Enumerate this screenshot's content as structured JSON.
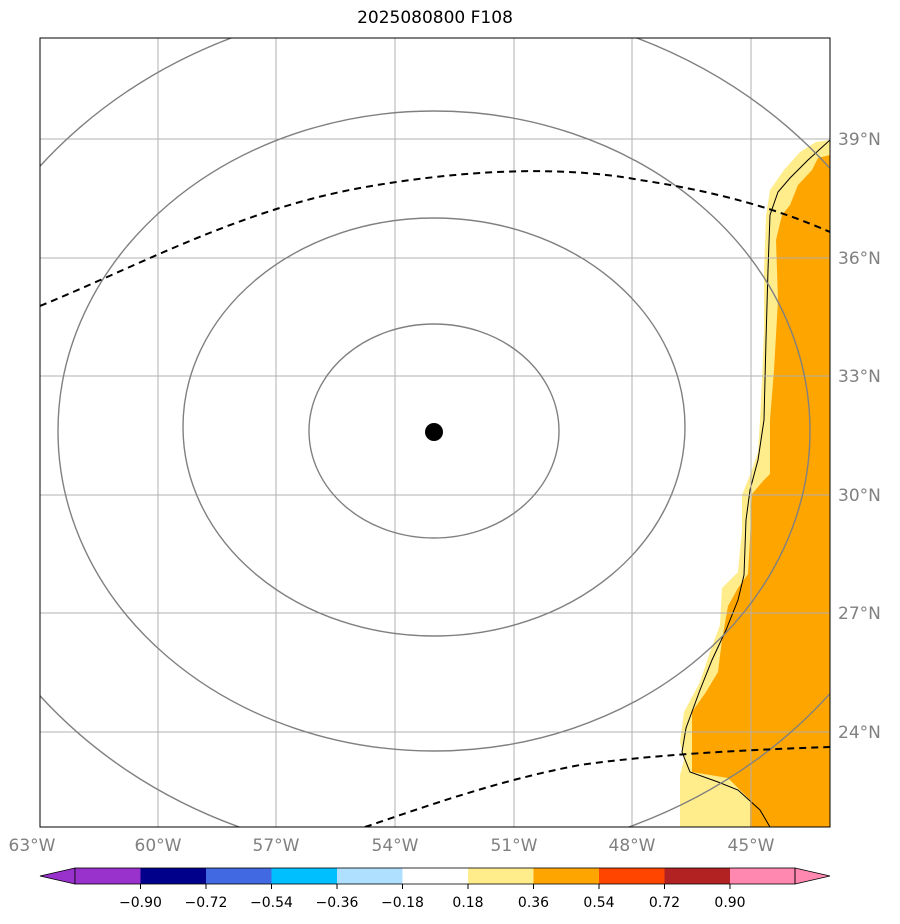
{
  "title": "2025080800 F108",
  "map": {
    "projection": "orthographic",
    "center_marker": {
      "lon": -52.7,
      "lat": 31.5,
      "color": "#000000"
    },
    "lon_ticks": [
      "63°W",
      "60°W",
      "57°W",
      "54°W",
      "51°W",
      "48°W",
      "45°W"
    ],
    "lat_ticks": [
      "39°N",
      "36°N",
      "33°N",
      "30°N",
      "27°N",
      "24°N"
    ],
    "range_rings": 4,
    "ring_color": "#808080",
    "gridline_color": "#b0b0b0",
    "contour_style": "dashed black",
    "shaded_field_colors": {
      "0.18-0.36": "#ffec8b",
      "0.36-0.54": "#ffa500"
    }
  },
  "colorbar": {
    "ticks": [
      "−0.90",
      "−0.72",
      "−0.54",
      "−0.36",
      "−0.18",
      "0.18",
      "0.36",
      "0.54",
      "0.72",
      "0.90"
    ],
    "colors": [
      "#9932cc",
      "#00008b",
      "#4169e1",
      "#00bfff",
      "#b0e0ff",
      "#ffffff",
      "#ffec8b",
      "#ffa500",
      "#ff4500",
      "#b22222",
      "#ff88b0"
    ]
  }
}
